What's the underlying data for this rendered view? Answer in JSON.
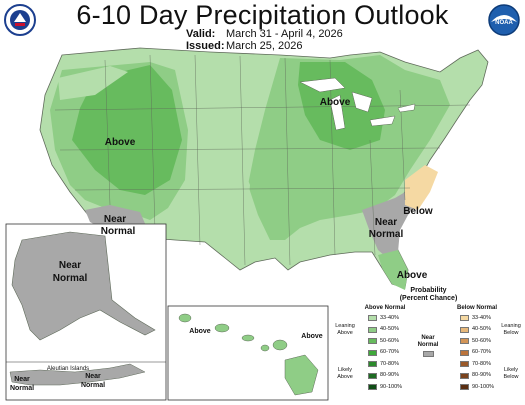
{
  "title": "6-10 Day Precipitation Outlook",
  "valid": {
    "label": "Valid:",
    "value": "March 31 - April 4, 2026"
  },
  "issued": {
    "label": "Issued:",
    "value": "March 25, 2026"
  },
  "logos": {
    "left": "noaa-nws-seal-icon",
    "right": "noaa-logo-icon"
  },
  "map_labels": {
    "above_west": "Above",
    "above_great_lakes": "Above",
    "above_florida": "Above",
    "near_normal_sw_1": "Near",
    "near_normal_sw_2": "Normal",
    "near_normal_se_1": "Near",
    "near_normal_se_2": "Normal",
    "below_carolinas": "Below",
    "alaska_1": "Near",
    "alaska_2": "Normal",
    "aleutian_title": "Aleutian Islands",
    "aleutian_1": "Near",
    "aleutian_2": "Normal",
    "aleutian_3": "Near",
    "aleutian_4": "Normal",
    "hawaii_1": "Above",
    "hawaii_2": "Above"
  },
  "legend": {
    "title_1": "Probability",
    "title_2": "(Percent Chance)",
    "above_title": "Above Normal",
    "below_title": "Below Normal",
    "near_title_1": "Near",
    "near_title_2": "Normal",
    "leaning_above_1": "Leaning",
    "leaning_above_2": "Above",
    "likely_above_1": "Likely",
    "likely_above_2": "Above",
    "leaning_below_1": "Leaning",
    "leaning_below_2": "Below",
    "likely_below_1": "Likely",
    "likely_below_2": "Below",
    "ranges": [
      "33-40%",
      "40-50%",
      "50-60%",
      "60-70%",
      "70-80%",
      "80-90%",
      "90-100%"
    ],
    "above_colors": [
      "#b4deab",
      "#8fcd86",
      "#67bb5e",
      "#3fa93a",
      "#2c8a2c",
      "#1d6b22",
      "#104d16"
    ],
    "below_colors": [
      "#f5d9a3",
      "#e7b87a",
      "#d39557",
      "#bb743c",
      "#9b5a2a",
      "#7a431e",
      "#5a2e12"
    ],
    "near_color": "#a8a8a8"
  }
}
